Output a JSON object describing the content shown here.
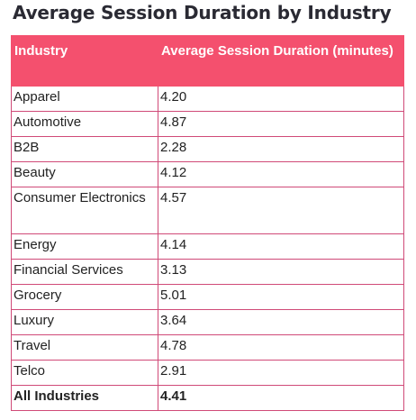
{
  "title": "Average Session Duration by Industry",
  "table": {
    "headers": [
      "Industry",
      "Average Session Duration (minutes)"
    ],
    "rows": [
      [
        "Apparel",
        "4.20"
      ],
      [
        "Automotive",
        "4.87"
      ],
      [
        "B2B",
        "2.28"
      ],
      [
        "Beauty",
        "4.12"
      ],
      [
        "Consumer Electronics",
        "4.57"
      ],
      [
        "Energy",
        "4.14"
      ],
      [
        "Financial Services",
        "3.13"
      ],
      [
        "Grocery",
        "5.01"
      ],
      [
        "Luxury",
        "3.64"
      ],
      [
        "Travel",
        "4.78"
      ],
      [
        "Telco",
        "2.91"
      ],
      [
        "All Industries",
        "4.41"
      ]
    ]
  },
  "colors": {
    "header_bg": "#f4506e",
    "header_text": "#ffffff",
    "border": "#d04a78",
    "title_text": "#2a2a33"
  }
}
